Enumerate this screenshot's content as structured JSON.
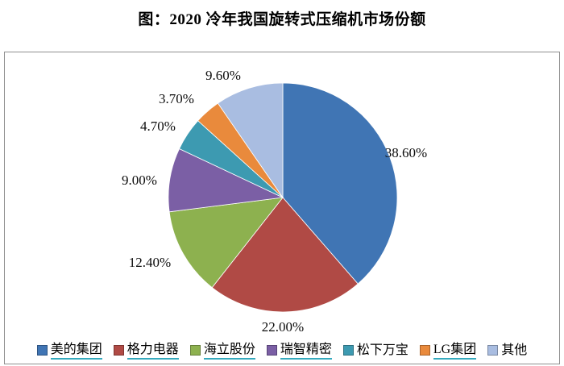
{
  "title": "图：2020 冷年我国旋转式压缩机市场份额",
  "colors": {
    "link_underline": "#35aabe",
    "panel_border": "#8f8f8f",
    "background": "#ffffff",
    "label_text": "#0d0d0d"
  },
  "chart_data": {
    "type": "pie",
    "title": "图：2020 冷年我国旋转式压缩机市场份额",
    "start_angle_deg": 0,
    "direction": "clockwise",
    "legend_position": "bottom",
    "data_labels": "outside-percent",
    "slices": [
      {
        "label": "美的集团",
        "value": 38.6,
        "display": "38.60%",
        "color": "#4075b4",
        "underlined": true
      },
      {
        "label": "格力电器",
        "value": 22.0,
        "display": "22.00%",
        "color": "#b04a45",
        "underlined": true
      },
      {
        "label": "海立股份",
        "value": 12.4,
        "display": "12.40%",
        "color": "#8db14f",
        "underlined": true
      },
      {
        "label": "瑞智精密",
        "value": 9.0,
        "display": "9.00%",
        "color": "#7b5fa5",
        "underlined": true
      },
      {
        "label": "松下万宝",
        "value": 4.7,
        "display": "4.70%",
        "color": "#3d9ab1",
        "underlined": false
      },
      {
        "label": "LG集团",
        "value": 3.7,
        "display": "3.70%",
        "color": "#e98a3c",
        "underlined": true
      },
      {
        "label": "其他",
        "value": 9.6,
        "display": "9.60%",
        "color": "#a9bde1",
        "underlined": false
      }
    ]
  }
}
